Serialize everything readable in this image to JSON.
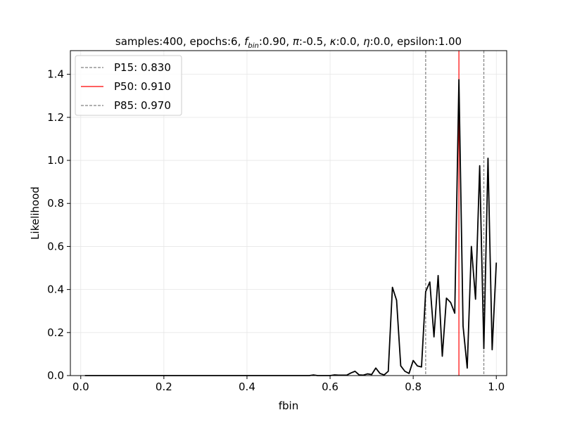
{
  "chart_data": {
    "type": "line",
    "title": {
      "prefix": "samples:400, epochs:6, ",
      "f_symbol": "f",
      "f_sub": "bin",
      "f_value": ":0.90, ",
      "pi_symbol": "π",
      "pi_value": ":-0.5, ",
      "kappa_symbol": "κ",
      "kappa_value": ":0.0, ",
      "eta_symbol": "η",
      "eta_value": ":0.0, epsilon:1.00"
    },
    "xlabel": "fbin",
    "ylabel": "Likelihood",
    "xlim": [
      -0.025,
      1.025
    ],
    "ylim": [
      0,
      1.51
    ],
    "xticks": [
      0.0,
      0.2,
      0.4,
      0.6,
      0.8,
      1.0
    ],
    "xtick_labels": [
      "0.0",
      "0.2",
      "0.4",
      "0.6",
      "0.8",
      "1.0"
    ],
    "yticks": [
      0.0,
      0.2,
      0.4,
      0.6,
      0.8,
      1.0,
      1.2,
      1.4
    ],
    "ytick_labels": [
      "0.0",
      "0.2",
      "0.4",
      "0.6",
      "0.8",
      "1.0",
      "1.2",
      "1.4"
    ],
    "grid": true,
    "legend_position": "upper-left",
    "series": [
      {
        "color": "#000000",
        "x": [
          0.01,
          0.1,
          0.2,
          0.3,
          0.4,
          0.5,
          0.55,
          0.56,
          0.57,
          0.6,
          0.61,
          0.62,
          0.64,
          0.65,
          0.66,
          0.67,
          0.68,
          0.69,
          0.7,
          0.71,
          0.72,
          0.73,
          0.74,
          0.75,
          0.76,
          0.77,
          0.78,
          0.79,
          0.8,
          0.81,
          0.82,
          0.83,
          0.84,
          0.85,
          0.86,
          0.87,
          0.88,
          0.89,
          0.9,
          0.91,
          0.92,
          0.93,
          0.94,
          0.95,
          0.96,
          0.97,
          0.98,
          0.99,
          1.0
        ],
        "y": [
          0.0,
          0.0,
          0.0,
          0.0,
          0.0,
          0.0,
          0.0,
          0.003,
          0.0,
          0.0,
          0.003,
          0.002,
          0.002,
          0.012,
          0.02,
          0.003,
          0.002,
          0.008,
          0.005,
          0.035,
          0.01,
          0.003,
          0.02,
          0.41,
          0.35,
          0.045,
          0.02,
          0.01,
          0.07,
          0.045,
          0.04,
          0.39,
          0.435,
          0.18,
          0.465,
          0.09,
          0.36,
          0.34,
          0.29,
          1.375,
          0.23,
          0.035,
          0.6,
          0.355,
          0.975,
          0.125,
          1.01,
          0.12,
          0.525
        ]
      }
    ],
    "vlines": [
      {
        "label": "P15: 0.830",
        "x": 0.83,
        "color": "#808080",
        "style": "dashed"
      },
      {
        "label": "P50: 0.910",
        "x": 0.91,
        "color": "#ff0000",
        "style": "solid"
      },
      {
        "label": "P85: 0.970",
        "x": 0.97,
        "color": "#808080",
        "style": "dashed"
      }
    ]
  }
}
